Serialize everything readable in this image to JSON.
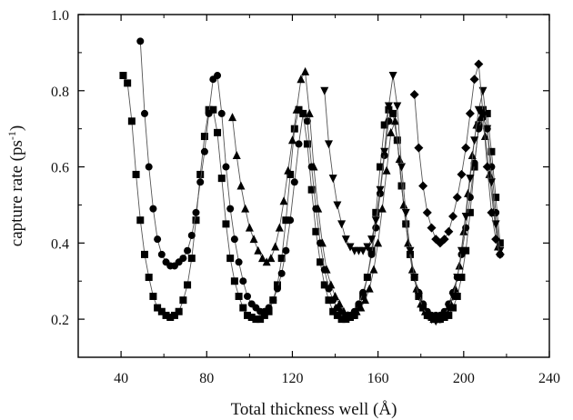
{
  "chart_data": {
    "type": "scatter",
    "title": "",
    "xlabel": "Total thickness well (Å)",
    "ylabel_main": "capture rate (ps",
    "ylabel_sup": "-1",
    "ylabel_end": ")",
    "xlim": [
      20,
      240
    ],
    "ylim": [
      0.1,
      1.0
    ],
    "x_ticks": [
      40,
      80,
      120,
      160,
      200,
      240
    ],
    "x_tick_labels": [
      "40",
      "80",
      "120",
      "160",
      "200",
      "240"
    ],
    "y_ticks": [
      0.2,
      0.4,
      0.6,
      0.8,
      1.0
    ],
    "y_tick_labels": [
      "0.2",
      "0.4",
      "0.6",
      "0.8",
      "1.0"
    ],
    "grid": false,
    "legend": "none",
    "line_color": "#555555",
    "marker_color": "#000000",
    "series": [
      {
        "marker": "square",
        "x": [
          41,
          43,
          45,
          47,
          49,
          51,
          53,
          55,
          57,
          59,
          61,
          63,
          65,
          67,
          69,
          71,
          73,
          75,
          77,
          79,
          81,
          83,
          85,
          87,
          89,
          91,
          93,
          95,
          97,
          99,
          101,
          103,
          105,
          107,
          109,
          111,
          113,
          115,
          117,
          119,
          121,
          123,
          125,
          127,
          129,
          131,
          133,
          135,
          137,
          139,
          141,
          143,
          145,
          147,
          149,
          151,
          153,
          155,
          157,
          159,
          161,
          163,
          165,
          167,
          169,
          171,
          173,
          175,
          177,
          179,
          181,
          183,
          185,
          187,
          189,
          191,
          193,
          195,
          197,
          199,
          201,
          203,
          205,
          207,
          209,
          211,
          213,
          215,
          217
        ],
        "y": [
          0.84,
          0.82,
          0.72,
          0.58,
          0.46,
          0.37,
          0.31,
          0.26,
          0.23,
          0.22,
          0.21,
          0.205,
          0.21,
          0.22,
          0.25,
          0.29,
          0.36,
          0.46,
          0.58,
          0.68,
          0.75,
          0.75,
          0.69,
          0.57,
          0.45,
          0.36,
          0.3,
          0.26,
          0.23,
          0.21,
          0.205,
          0.2,
          0.2,
          0.21,
          0.22,
          0.25,
          0.29,
          0.36,
          0.46,
          0.58,
          0.7,
          0.75,
          0.74,
          0.66,
          0.54,
          0.43,
          0.35,
          0.29,
          0.25,
          0.22,
          0.21,
          0.2,
          0.2,
          0.205,
          0.21,
          0.23,
          0.26,
          0.31,
          0.38,
          0.48,
          0.6,
          0.71,
          0.75,
          0.74,
          0.67,
          0.55,
          0.45,
          0.37,
          0.31,
          0.26,
          0.23,
          0.21,
          0.205,
          0.2,
          0.2,
          0.205,
          0.21,
          0.23,
          0.26,
          0.31,
          0.38,
          0.48,
          0.6,
          0.71,
          0.75,
          0.74,
          0.64,
          0.52,
          0.4
        ]
      },
      {
        "marker": "circle",
        "x": [
          49,
          51,
          53,
          55,
          57,
          59,
          61,
          63,
          65,
          67,
          69,
          71,
          73,
          75,
          77,
          79,
          81,
          83,
          85,
          87,
          89,
          91,
          93,
          95,
          97,
          99,
          101,
          103,
          105,
          107,
          109,
          111,
          113,
          115,
          117,
          119,
          121,
          123,
          125,
          127,
          129,
          131,
          133,
          135,
          137,
          139,
          141,
          143,
          145,
          147,
          149,
          151,
          153,
          155,
          157,
          159,
          161,
          163,
          165,
          167,
          169,
          171,
          173,
          175,
          177,
          179,
          181,
          183,
          185,
          187,
          189,
          191,
          193,
          195,
          197,
          199,
          201,
          203,
          205,
          207,
          209,
          211,
          213,
          215,
          217
        ],
        "y": [
          0.93,
          0.74,
          0.6,
          0.49,
          0.41,
          0.37,
          0.35,
          0.34,
          0.34,
          0.35,
          0.36,
          0.38,
          0.42,
          0.48,
          0.56,
          0.64,
          0.74,
          0.83,
          0.84,
          0.74,
          0.6,
          0.49,
          0.41,
          0.35,
          0.3,
          0.26,
          0.24,
          0.23,
          0.22,
          0.22,
          0.23,
          0.25,
          0.28,
          0.32,
          0.38,
          0.46,
          0.56,
          0.66,
          0.74,
          0.72,
          0.6,
          0.49,
          0.4,
          0.33,
          0.28,
          0.25,
          0.23,
          0.22,
          0.21,
          0.21,
          0.22,
          0.24,
          0.27,
          0.31,
          0.37,
          0.44,
          0.53,
          0.63,
          0.72,
          0.74,
          0.67,
          0.55,
          0.45,
          0.37,
          0.31,
          0.27,
          0.24,
          0.22,
          0.21,
          0.21,
          0.21,
          0.22,
          0.24,
          0.27,
          0.31,
          0.37,
          0.44,
          0.52,
          0.61,
          0.7,
          0.73,
          0.7,
          0.6,
          0.48,
          0.37
        ]
      },
      {
        "marker": "triangle-up",
        "x": [
          92,
          94,
          96,
          98,
          100,
          102,
          104,
          106,
          108,
          110,
          112,
          114,
          116,
          118,
          120,
          122,
          124,
          126,
          128,
          130,
          132,
          134,
          136,
          138,
          140,
          142,
          144,
          146,
          148,
          150,
          152,
          154,
          156,
          158,
          160,
          162,
          164,
          166,
          168,
          170,
          172,
          174,
          176,
          178,
          180,
          182,
          184,
          186,
          188,
          190,
          192,
          194,
          196,
          198,
          200,
          202,
          204,
          206,
          208,
          210,
          212,
          214,
          216
        ],
        "y": [
          0.73,
          0.63,
          0.55,
          0.49,
          0.44,
          0.41,
          0.38,
          0.36,
          0.35,
          0.36,
          0.39,
          0.44,
          0.51,
          0.59,
          0.67,
          0.75,
          0.83,
          0.85,
          0.74,
          0.6,
          0.49,
          0.4,
          0.33,
          0.29,
          0.26,
          0.24,
          0.22,
          0.21,
          0.21,
          0.22,
          0.23,
          0.25,
          0.28,
          0.33,
          0.4,
          0.49,
          0.59,
          0.69,
          0.72,
          0.62,
          0.5,
          0.4,
          0.33,
          0.28,
          0.24,
          0.22,
          0.21,
          0.2,
          0.2,
          0.21,
          0.22,
          0.24,
          0.28,
          0.34,
          0.43,
          0.53,
          0.63,
          0.71,
          0.73,
          0.68,
          0.58,
          0.48,
          0.39
        ]
      },
      {
        "marker": "triangle-down",
        "x": [
          135,
          137,
          139,
          141,
          143,
          145,
          147,
          149,
          151,
          153,
          155,
          157,
          159,
          161,
          163,
          165,
          167,
          169,
          171,
          173,
          175,
          177,
          179,
          181,
          183,
          185,
          187,
          189,
          191,
          193,
          195,
          197,
          199,
          201,
          203,
          205,
          207,
          209,
          211,
          213,
          215,
          217
        ],
        "y": [
          0.8,
          0.66,
          0.57,
          0.5,
          0.45,
          0.41,
          0.39,
          0.38,
          0.38,
          0.38,
          0.39,
          0.41,
          0.46,
          0.54,
          0.64,
          0.76,
          0.84,
          0.76,
          0.6,
          0.48,
          0.38,
          0.31,
          0.26,
          0.23,
          0.21,
          0.2,
          0.195,
          0.2,
          0.21,
          0.23,
          0.26,
          0.31,
          0.38,
          0.47,
          0.57,
          0.67,
          0.75,
          0.8,
          0.7,
          0.56,
          0.45,
          0.38
        ]
      },
      {
        "marker": "diamond",
        "x": [
          177,
          179,
          181,
          183,
          185,
          187,
          189,
          191,
          193,
          195,
          197,
          199,
          201,
          203,
          205,
          207,
          209,
          211,
          213,
          215,
          217
        ],
        "y": [
          0.79,
          0.65,
          0.55,
          0.48,
          0.44,
          0.41,
          0.4,
          0.41,
          0.43,
          0.47,
          0.52,
          0.58,
          0.65,
          0.74,
          0.83,
          0.87,
          0.74,
          0.6,
          0.48,
          0.41,
          0.37
        ]
      }
    ]
  }
}
